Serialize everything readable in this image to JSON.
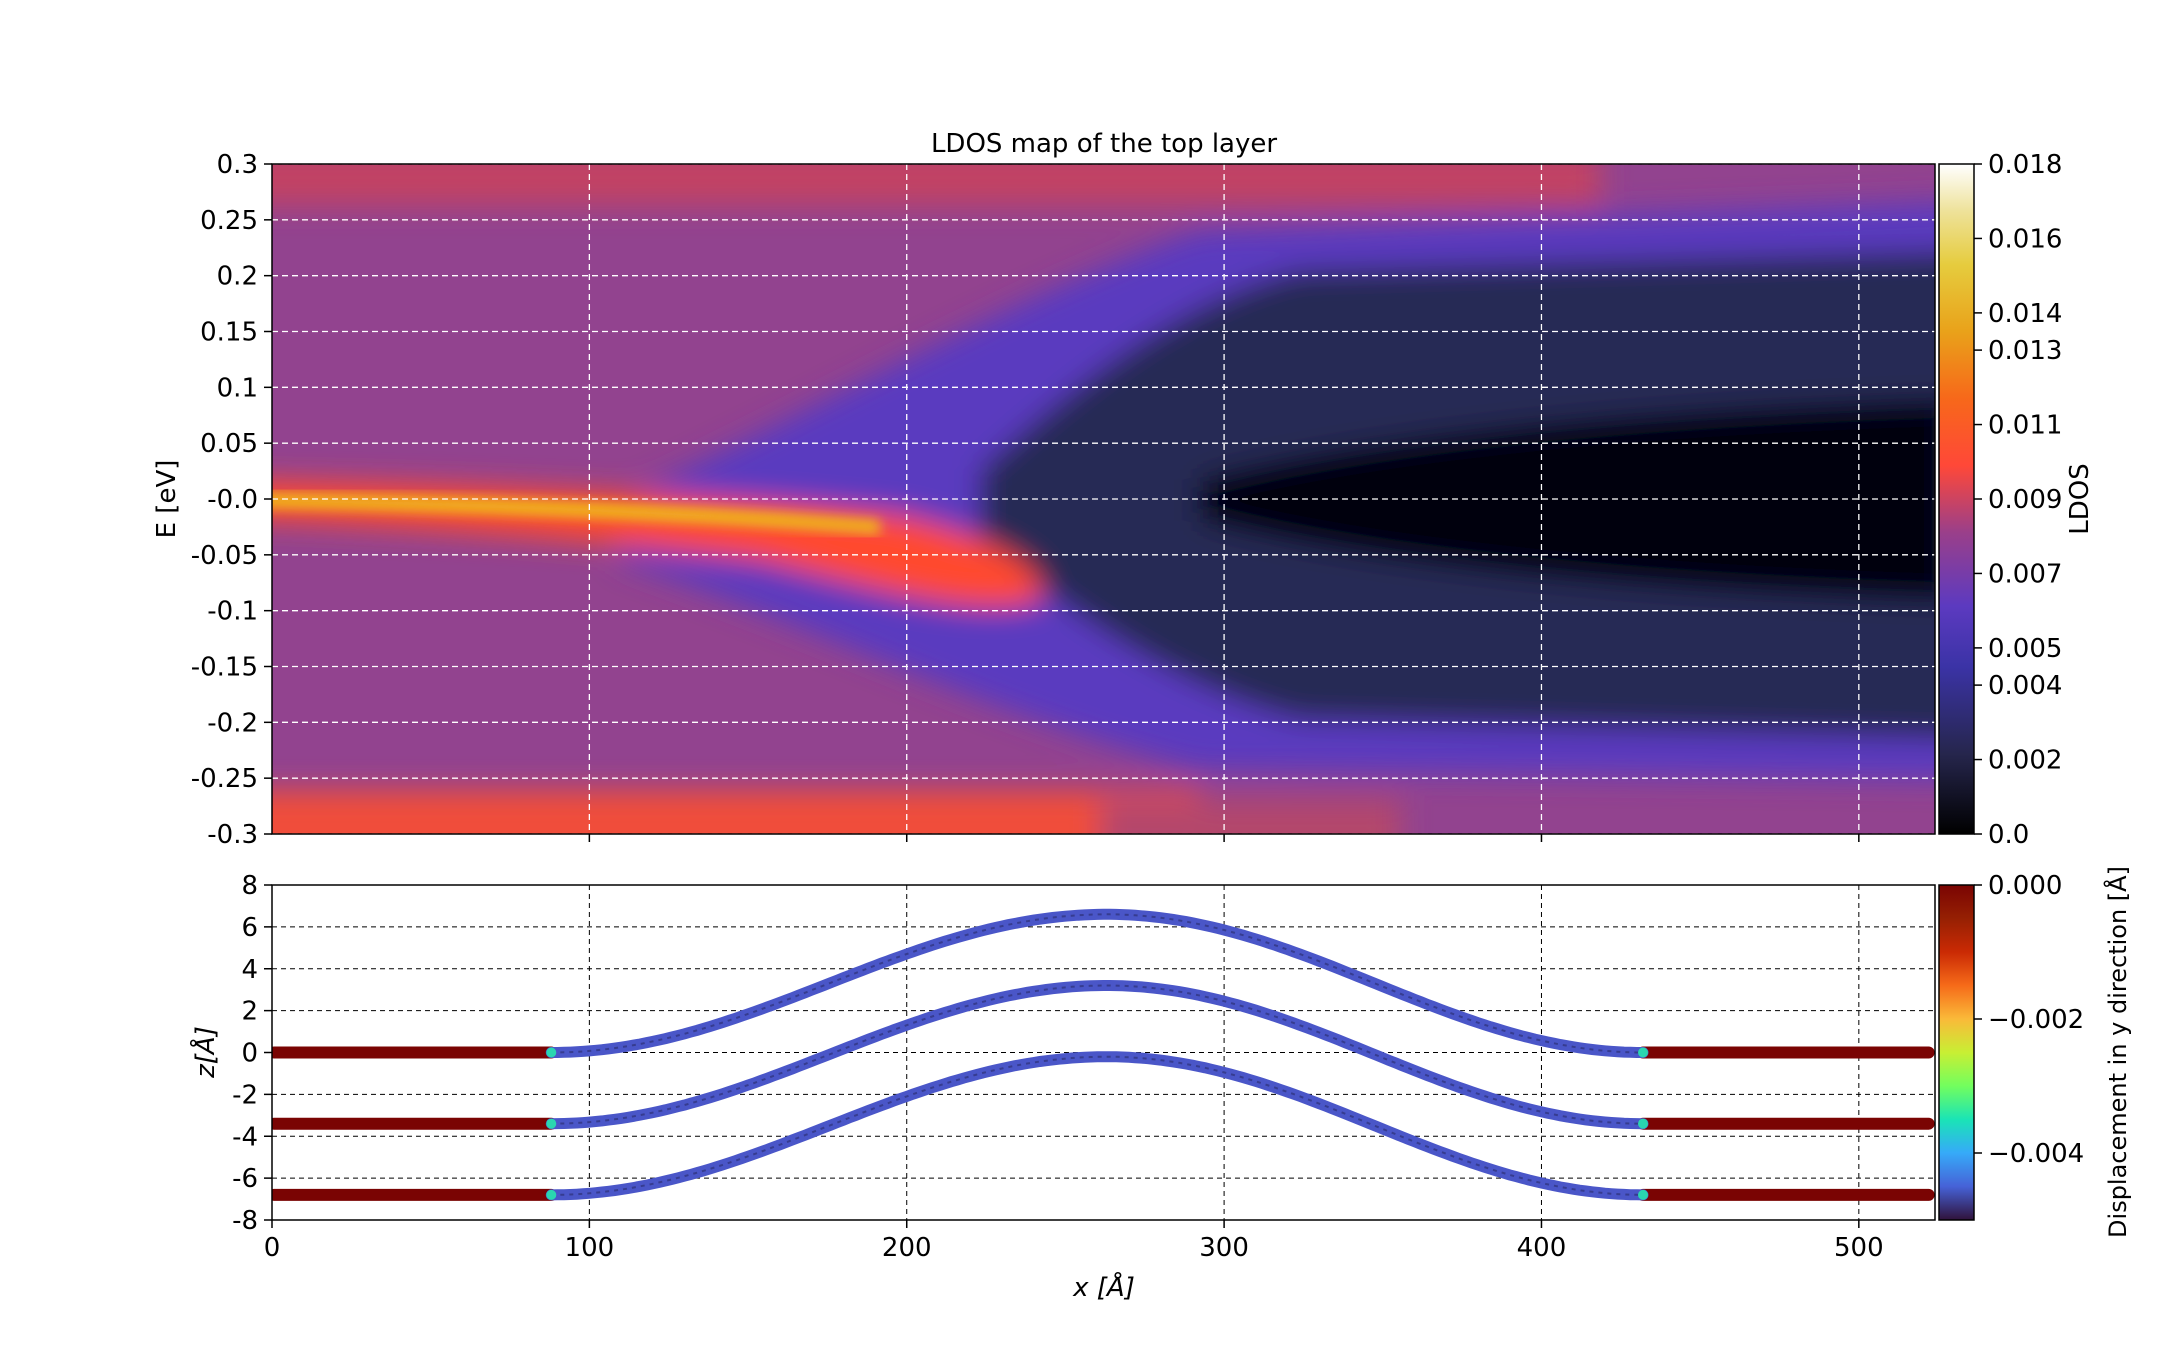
{
  "chart_data": [
    {
      "type": "heatmap",
      "title": "LDOS map of the top layer",
      "ylabel": "E [eV]",
      "xlim": [
        0,
        524
      ],
      "ylim": [
        -0.3,
        0.3
      ],
      "xticks": [
        100,
        200,
        300,
        400,
        500
      ],
      "yticks": [
        -0.3,
        -0.25,
        -0.2,
        -0.15,
        -0.1,
        -0.05,
        0.0,
        0.05,
        0.1,
        0.15,
        0.2,
        0.25,
        0.3
      ],
      "ytick_labels": [
        "-0.3",
        "-0.25",
        "-0.2",
        "-0.15",
        "-0.1",
        "-0.05",
        "-0.0",
        "0.05",
        "0.1",
        "0.15",
        "0.2",
        "0.25",
        "0.3"
      ],
      "grid": true,
      "colormap": "CMRmap",
      "colorbar": {
        "label": "LDOS",
        "range": [
          0.0,
          0.018
        ],
        "ticks": [
          0.0,
          0.002,
          0.004,
          0.005,
          0.007,
          0.009,
          0.011,
          0.013,
          0.014,
          0.016,
          0.018
        ],
        "tick_labels": [
          "0.0",
          "0.002",
          "0.004",
          "0.005",
          "0.007",
          "0.009",
          "0.011",
          "0.013",
          "0.014",
          "0.016",
          "0.018"
        ]
      },
      "features": {
        "background_ldos": 0.0065,
        "edge_state_x": [
          0,
          100,
          150,
          200,
          230
        ],
        "edge_state_E": [
          0.0,
          -0.005,
          -0.015,
          -0.03,
          -0.045
        ],
        "edge_state_ldos": [
          0.0125,
          0.0125,
          0.012,
          0.0105,
          0.0085
        ],
        "gap_region_x": [
          280,
          520
        ],
        "gap_center_E": -0.01,
        "gap_ldos": 0.0003,
        "band_edge_E_at_x520": [
          0.21,
          -0.22
        ]
      }
    },
    {
      "type": "scatter",
      "xlabel": "x [Å]",
      "ylabel": "z[Å]",
      "xlim": [
        0,
        524
      ],
      "ylim": [
        -8,
        8
      ],
      "xticks": [
        0,
        100,
        200,
        300,
        400,
        500
      ],
      "yticks": [
        -8,
        -6,
        -4,
        -2,
        0,
        2,
        4,
        6,
        8
      ],
      "grid": true,
      "colormap": "turbo",
      "colorbar": {
        "label": "Displacement in y direction [Å]",
        "range": [
          -0.005,
          0.0
        ],
        "ticks": [
          0.0,
          -0.002,
          -0.004
        ],
        "tick_labels": [
          "0.000",
          "−0.002",
          "−0.004"
        ]
      },
      "series": [
        {
          "flat_z": 0.0,
          "peak_z": 6.6
        },
        {
          "flat_z": -3.4,
          "peak_z": 3.2
        },
        {
          "flat_z": -6.8,
          "peak_z": -0.2
        }
      ],
      "bump": {
        "start_x": 88,
        "center_x": 263,
        "end_x": 432
      },
      "displacement_flat": 0.0,
      "displacement_bump": -0.0047
    }
  ]
}
